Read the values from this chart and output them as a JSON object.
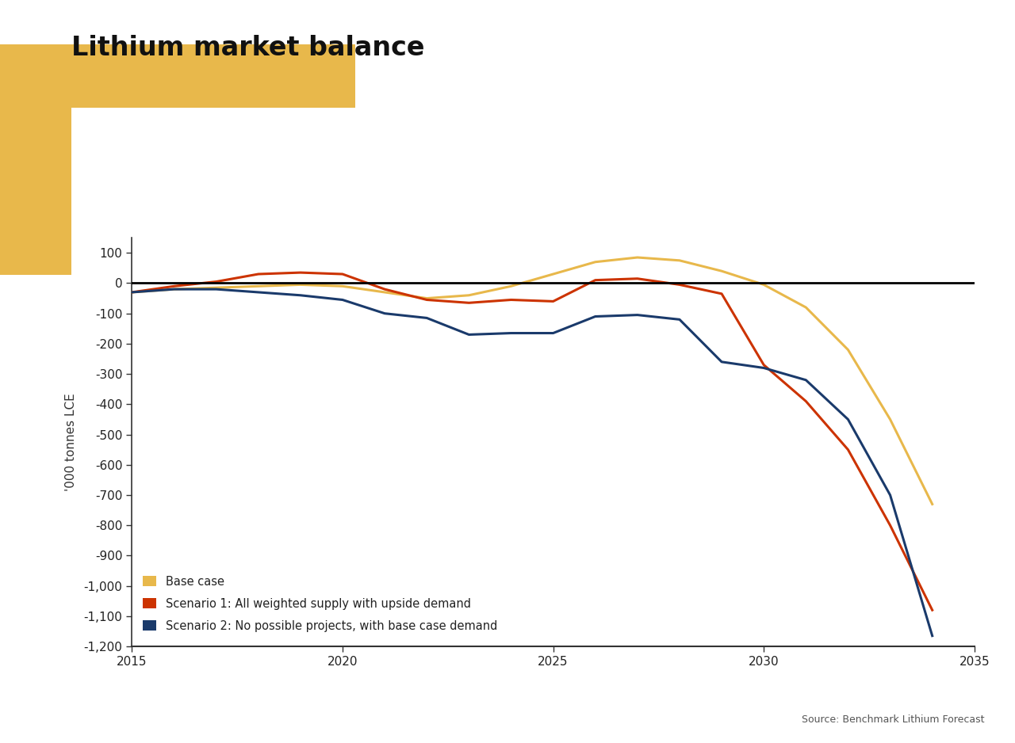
{
  "title": "Lithium market balance",
  "ylabel": "'000 tonnes LCE",
  "xlabel": "",
  "xlim": [
    2015,
    2035
  ],
  "ylim": [
    -1200,
    150
  ],
  "yticks": [
    100,
    0,
    -100,
    -200,
    -300,
    -400,
    -500,
    -600,
    -700,
    -800,
    -900,
    -1000,
    -1100,
    -1200
  ],
  "xticks": [
    2015,
    2020,
    2025,
    2030,
    2035
  ],
  "background_color": "#ffffff",
  "plot_bg_color": "#ffffff",
  "title_color": "#1a1a1a",
  "title_fontsize": 24,
  "gold_color": "#E8B84B",
  "base_case_color": "#E8B84B",
  "scenario1_color": "#CC3300",
  "scenario2_color": "#1A3A6B",
  "legend_labels": [
    "Base case",
    "Scenario 1: All weighted supply with upside demand",
    "Scenario 2: No possible projects, with base case demand"
  ],
  "base_case": {
    "x": [
      2015,
      2016,
      2017,
      2018,
      2019,
      2020,
      2021,
      2022,
      2023,
      2024,
      2025,
      2026,
      2027,
      2028,
      2029,
      2030,
      2031,
      2032,
      2033,
      2034
    ],
    "y": [
      -30,
      -20,
      -15,
      -10,
      -5,
      -10,
      -30,
      -50,
      -40,
      -10,
      30,
      70,
      85,
      75,
      40,
      -5,
      -80,
      -220,
      -450,
      -730
    ]
  },
  "scenario1": {
    "x": [
      2015,
      2016,
      2017,
      2018,
      2019,
      2020,
      2021,
      2022,
      2023,
      2024,
      2025,
      2026,
      2027,
      2028,
      2029,
      2030,
      2031,
      2032,
      2033,
      2034
    ],
    "y": [
      -30,
      -10,
      5,
      30,
      35,
      30,
      -20,
      -55,
      -65,
      -55,
      -60,
      10,
      15,
      -5,
      -35,
      -270,
      -390,
      -550,
      -800,
      -1080
    ]
  },
  "scenario2": {
    "x": [
      2015,
      2016,
      2017,
      2018,
      2019,
      2020,
      2021,
      2022,
      2023,
      2024,
      2025,
      2026,
      2027,
      2028,
      2029,
      2030,
      2031,
      2032,
      2033,
      2034
    ],
    "y": [
      -30,
      -20,
      -20,
      -30,
      -40,
      -55,
      -100,
      -115,
      -170,
      -165,
      -165,
      -110,
      -105,
      -120,
      -260,
      -280,
      -320,
      -450,
      -700,
      -1165
    ]
  },
  "source_text": "Source: Benchmark Lithium Forecast",
  "line_width": 2.2
}
